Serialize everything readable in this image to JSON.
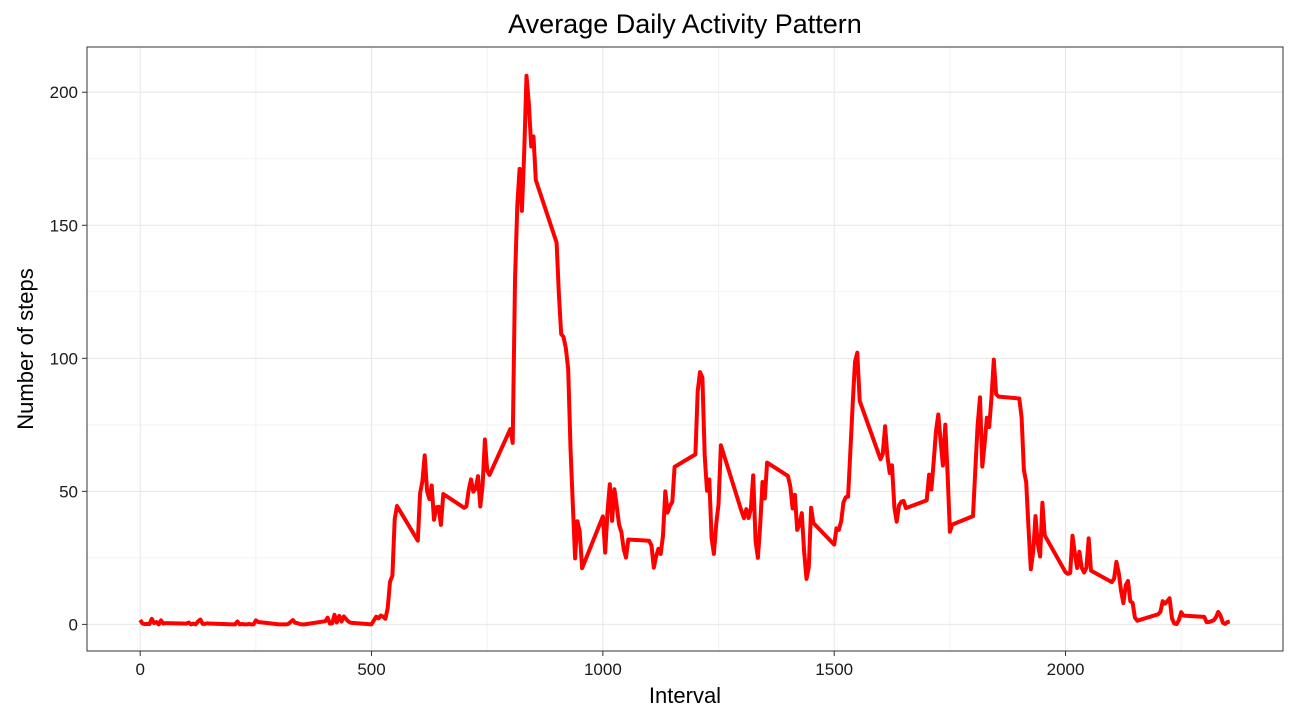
{
  "chart_data": {
    "type": "line",
    "title": "Average Daily Activity Pattern",
    "xlabel": "Interval",
    "ylabel": "Number of steps",
    "xlim": [
      -115,
      2470
    ],
    "ylim": [
      -10,
      217
    ],
    "x_ticks": [
      0,
      500,
      1000,
      1500,
      2000
    ],
    "y_ticks": [
      0,
      50,
      100,
      150,
      200
    ],
    "x_tick_labels": [
      "0",
      "500",
      "1000",
      "1500",
      "2000"
    ],
    "y_tick_labels": [
      "0",
      "50",
      "100",
      "150",
      "200"
    ],
    "grid": true,
    "legend": "none",
    "line_color": "#ff0000",
    "series": [
      {
        "x": [
          0,
          5,
          10,
          15,
          20,
          25,
          30,
          35,
          40,
          45,
          50,
          55,
          100,
          105,
          110,
          115,
          120,
          125,
          130,
          135,
          140,
          145,
          150,
          155,
          200,
          205,
          210,
          215,
          220,
          225,
          230,
          235,
          240,
          245,
          250,
          255,
          300,
          305,
          310,
          315,
          320,
          325,
          330,
          335,
          340,
          345,
          350,
          355,
          400,
          405,
          410,
          415,
          420,
          425,
          430,
          435,
          440,
          445,
          450,
          455,
          500,
          505,
          510,
          515,
          520,
          525,
          530,
          535,
          540,
          545,
          550,
          555,
          600,
          605,
          610,
          615,
          620,
          625,
          630,
          635,
          640,
          645,
          650,
          655,
          700,
          705,
          710,
          715,
          720,
          725,
          730,
          735,
          740,
          745,
          750,
          755,
          800,
          805,
          810,
          815,
          820,
          825,
          830,
          835,
          840,
          845,
          850,
          855,
          900,
          905,
          910,
          915,
          920,
          925,
          930,
          935,
          940,
          945,
          950,
          955,
          1000,
          1005,
          1010,
          1015,
          1020,
          1025,
          1030,
          1035,
          1040,
          1045,
          1050,
          1055,
          1100,
          1105,
          1110,
          1115,
          1120,
          1125,
          1130,
          1135,
          1140,
          1145,
          1150,
          1155,
          1200,
          1205,
          1210,
          1215,
          1220,
          1225,
          1230,
          1235,
          1240,
          1245,
          1250,
          1255,
          1300,
          1305,
          1310,
          1315,
          1320,
          1325,
          1330,
          1335,
          1340,
          1345,
          1350,
          1355,
          1400,
          1405,
          1410,
          1415,
          1420,
          1425,
          1430,
          1435,
          1440,
          1445,
          1450,
          1455,
          1500,
          1505,
          1510,
          1515,
          1520,
          1525,
          1530,
          1535,
          1540,
          1545,
          1550,
          1555,
          1600,
          1605,
          1610,
          1615,
          1620,
          1625,
          1630,
          1635,
          1640,
          1645,
          1650,
          1655,
          1700,
          1705,
          1710,
          1715,
          1720,
          1725,
          1730,
          1735,
          1740,
          1745,
          1750,
          1755,
          1800,
          1805,
          1810,
          1815,
          1820,
          1825,
          1830,
          1835,
          1840,
          1845,
          1850,
          1855,
          1900,
          1905,
          1910,
          1915,
          1920,
          1925,
          1930,
          1935,
          1940,
          1945,
          1950,
          1955,
          2000,
          2005,
          2010,
          2015,
          2020,
          2025,
          2030,
          2035,
          2040,
          2045,
          2050,
          2055,
          2100,
          2105,
          2110,
          2115,
          2120,
          2125,
          2130,
          2135,
          2140,
          2145,
          2150,
          2155,
          2200,
          2205,
          2210,
          2215,
          2220,
          2225,
          2230,
          2235,
          2240,
          2245,
          2250,
          2255,
          2300,
          2305,
          2310,
          2315,
          2320,
          2325,
          2330,
          2335,
          2340,
          2345,
          2350,
          2355
        ],
        "y": [
          1.7,
          0.3,
          0.1,
          0.2,
          0.1,
          2.1,
          0.5,
          0.9,
          0.0,
          1.5,
          0.3,
          0.5,
          0.3,
          0.7,
          0.0,
          0.3,
          0.0,
          1.1,
          1.8,
          0.2,
          0.2,
          0.4,
          0.3,
          0.3,
          0.0,
          0.0,
          1.1,
          0.0,
          0.2,
          0.0,
          0.0,
          0.2,
          0.0,
          0.0,
          1.5,
          0.9,
          0.0,
          0.0,
          0.0,
          0.0,
          0.2,
          0.9,
          1.6,
          0.6,
          0.5,
          0.1,
          0.0,
          0.0,
          1.2,
          2.5,
          0.3,
          0.4,
          3.6,
          0.7,
          3.2,
          1.1,
          3.0,
          2.0,
          1.1,
          0.6,
          0.0,
          1.5,
          2.9,
          2.3,
          3.3,
          2.9,
          2.1,
          6.1,
          16.0,
          18.3,
          39.5,
          44.5,
          31.5,
          49.3,
          53.8,
          63.5,
          50.0,
          47.1,
          52.2,
          39.3,
          44.0,
          44.2,
          37.4,
          49.0,
          43.8,
          44.4,
          50.5,
          54.5,
          49.9,
          51.0,
          55.7,
          44.3,
          52.3,
          69.5,
          57.8,
          56.2,
          73.4,
          68.2,
          129.4,
          157.5,
          171.2,
          155.4,
          177.3,
          206.2,
          195.9,
          179.6,
          183.4,
          167.0,
          143.5,
          124.0,
          109.1,
          108.1,
          103.7,
          95.9,
          66.2,
          45.2,
          24.8,
          38.8,
          34.9,
          21.1,
          40.6,
          27.0,
          42.4,
          52.7,
          38.9,
          50.8,
          44.3,
          37.4,
          34.7,
          28.3,
          25.1,
          31.9,
          31.4,
          29.7,
          21.3,
          25.5,
          28.4,
          26.5,
          33.4,
          50.0,
          42.0,
          44.6,
          46.0,
          59.2,
          63.9,
          87.6,
          94.8,
          92.8,
          63.4,
          50.2,
          54.5,
          32.4,
          26.5,
          37.7,
          45.1,
          67.3,
          42.3,
          39.9,
          43.3,
          40.0,
          43.6,
          56.0,
          31.2,
          25.0,
          37.3,
          53.5,
          47.3,
          60.8,
          55.8,
          51.9,
          43.6,
          48.7,
          35.5,
          37.5,
          41.8,
          27.5,
          17.1,
          21.5,
          43.8,
          38.1,
          30.0,
          36.1,
          35.5,
          38.8,
          45.9,
          47.8,
          48.0,
          65.3,
          82.9,
          98.7,
          102.1,
          84.0,
          62.1,
          64.1,
          74.5,
          63.2,
          56.9,
          59.8,
          43.9,
          38.6,
          44.7,
          46.1,
          46.4,
          43.7,
          46.6,
          56.3,
          50.7,
          61.2,
          72.7,
          78.9,
          68.9,
          59.7,
          75.1,
          56.5,
          34.8,
          37.5,
          40.7,
          58.0,
          74.7,
          85.3,
          59.3,
          67.8,
          77.7,
          74.2,
          85.3,
          99.5,
          86.6,
          85.6,
          84.9,
          77.8,
          58.0,
          53.4,
          36.3,
          20.7,
          27.4,
          40.7,
          30.2,
          25.5,
          45.7,
          33.5,
          19.6,
          19.0,
          19.3,
          33.3,
          26.8,
          21.2,
          27.3,
          21.3,
          19.5,
          21.3,
          32.3,
          20.2,
          15.9,
          17.2,
          23.5,
          19.2,
          12.5,
          8.0,
          14.7,
          16.3,
          8.7,
          8.1,
          2.6,
          1.4,
          3.8,
          4.7,
          8.7,
          7.8,
          8.7,
          9.8,
          2.2,
          0.3,
          0.1,
          1.6,
          4.6,
          3.3,
          2.8,
          0.8,
          0.9,
          1.2,
          1.5,
          2.6,
          4.7,
          3.3,
          0.6,
          0.2,
          0.9,
          1.1
        ]
      }
    ]
  }
}
